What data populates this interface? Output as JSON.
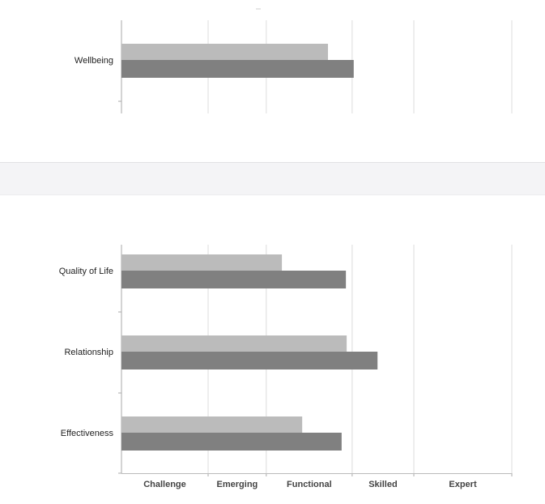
{
  "chart_data": [
    {
      "type": "bar",
      "orientation": "horizontal",
      "categories": [
        "Wellbeing"
      ],
      "series": [
        {
          "color": "#bbbbbb",
          "values": [
            52.9
          ]
        },
        {
          "color": "#808080",
          "values": [
            59.5
          ]
        }
      ],
      "xlim": [
        0,
        100
      ],
      "xgrid": [
        22.2,
        37.1,
        59.1,
        74.9,
        100
      ]
    },
    {
      "type": "bar",
      "orientation": "horizontal",
      "categories": [
        "Quality of Life",
        "Relationship",
        "Effectiveness"
      ],
      "series": [
        {
          "color": "#bbbbbb",
          "values": [
            41.1,
            57.7,
            46.3
          ]
        },
        {
          "color": "#808080",
          "values": [
            57.5,
            65.6,
            56.4
          ]
        }
      ],
      "xlim": [
        0,
        100
      ],
      "xgrid": [
        22.2,
        37.1,
        59.1,
        74.9,
        100
      ],
      "xband_labels": [
        "Challenge",
        "Emerging",
        "Functional",
        "Skilled",
        "Expert"
      ]
    }
  ]
}
